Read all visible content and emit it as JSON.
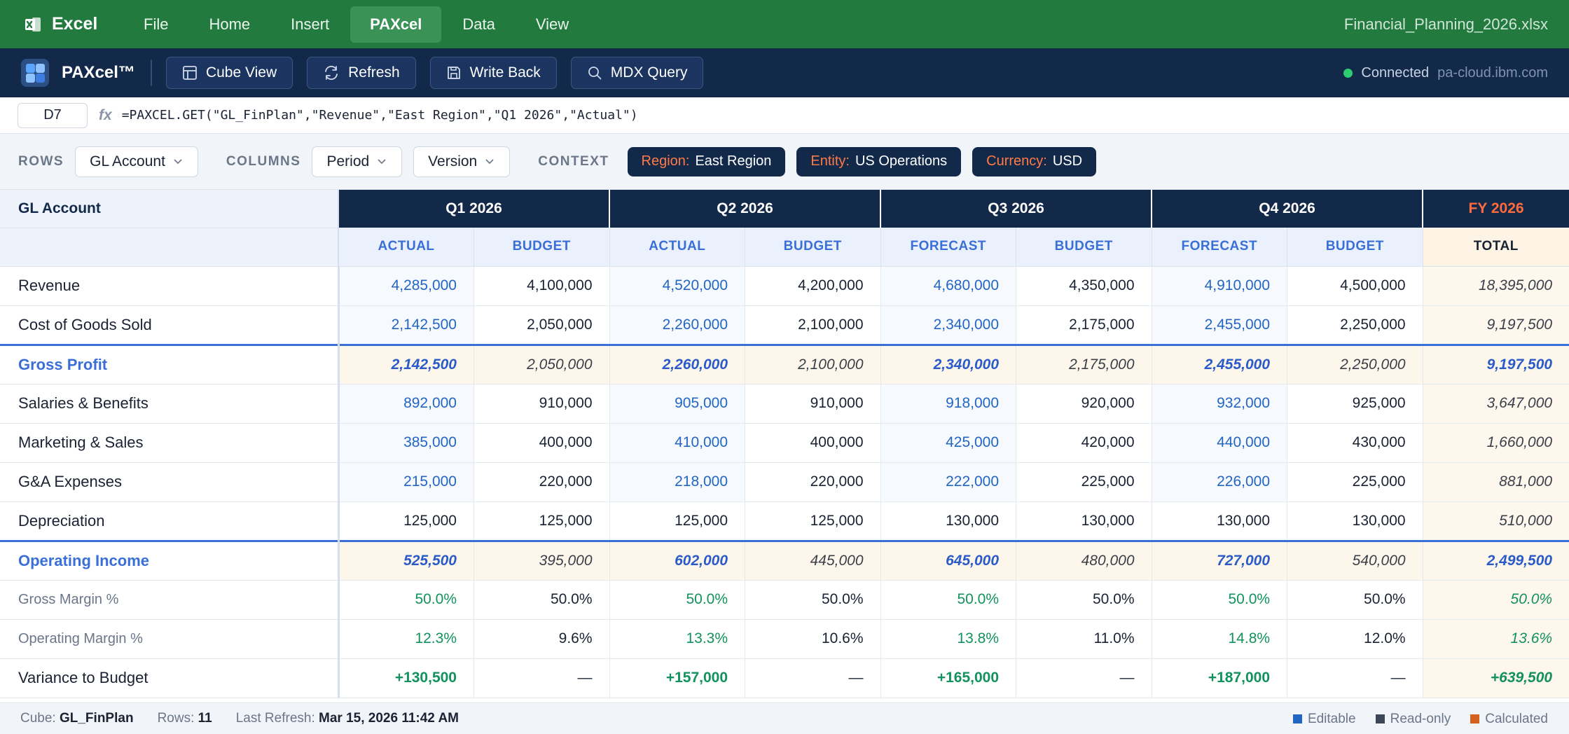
{
  "excel": {
    "app_name": "Excel",
    "tabs": [
      "File",
      "Home",
      "Insert",
      "PAXcel",
      "Data",
      "View"
    ],
    "active_tab": "PAXcel",
    "file_name": "Financial_Planning_2026.xlsx"
  },
  "paxcel": {
    "title": "PAXcel™",
    "buttons": {
      "cube_view": "Cube View",
      "refresh": "Refresh",
      "write_back": "Write Back",
      "mdx_query": "MDX Query"
    },
    "status": "Connected",
    "host": "pa-cloud.ibm.com",
    "status_color": "#2ecc71"
  },
  "formula_bar": {
    "cell": "D7",
    "fx": "fx",
    "formula": "=PAXCEL.GET(\"GL_FinPlan\",\"Revenue\",\"East Region\",\"Q1 2026\",\"Actual\")"
  },
  "dimensions": {
    "rows_label": "ROWS",
    "rows_value": "GL Account",
    "columns_label": "COLUMNS",
    "columns_values": [
      "Period",
      "Version"
    ],
    "context_label": "CONTEXT",
    "context": [
      {
        "key": "Region:",
        "value": "East Region"
      },
      {
        "key": "Entity:",
        "value": "US Operations"
      },
      {
        "key": "Currency:",
        "value": "USD"
      }
    ]
  },
  "grid": {
    "corner_label": "GL Account",
    "periods": [
      "Q1 2026",
      "Q2 2026",
      "Q3 2026",
      "Q4 2026"
    ],
    "fy_label": "FY 2026",
    "versions": [
      "ACTUAL",
      "BUDGET",
      "ACTUAL",
      "BUDGET",
      "FORECAST",
      "BUDGET",
      "FORECAST",
      "BUDGET",
      "TOTAL"
    ],
    "rows": [
      {
        "label": "Revenue",
        "type": "data",
        "values": [
          "4,285,000",
          "4,100,000",
          "4,520,000",
          "4,200,000",
          "4,680,000",
          "4,350,000",
          "4,910,000",
          "4,500,000",
          "18,395,000"
        ]
      },
      {
        "label": "Cost of Goods Sold",
        "type": "data",
        "values": [
          "2,142,500",
          "2,050,000",
          "2,260,000",
          "2,100,000",
          "2,340,000",
          "2,175,000",
          "2,455,000",
          "2,250,000",
          "9,197,500"
        ]
      },
      {
        "label": "Gross Profit",
        "type": "sub",
        "values": [
          "2,142,500",
          "2,050,000",
          "2,260,000",
          "2,100,000",
          "2,340,000",
          "2,175,000",
          "2,455,000",
          "2,250,000",
          "9,197,500"
        ]
      },
      {
        "label": "Salaries & Benefits",
        "type": "data",
        "values": [
          "892,000",
          "910,000",
          "905,000",
          "910,000",
          "918,000",
          "920,000",
          "932,000",
          "925,000",
          "3,647,000"
        ]
      },
      {
        "label": "Marketing & Sales",
        "type": "data",
        "values": [
          "385,000",
          "400,000",
          "410,000",
          "400,000",
          "425,000",
          "420,000",
          "440,000",
          "430,000",
          "1,660,000"
        ]
      },
      {
        "label": "G&A Expenses",
        "type": "data",
        "values": [
          "215,000",
          "220,000",
          "218,000",
          "220,000",
          "222,000",
          "225,000",
          "226,000",
          "225,000",
          "881,000"
        ]
      },
      {
        "label": "Depreciation",
        "type": "ro",
        "values": [
          "125,000",
          "125,000",
          "125,000",
          "125,000",
          "130,000",
          "130,000",
          "130,000",
          "130,000",
          "510,000"
        ]
      },
      {
        "label": "Operating Income",
        "type": "sub",
        "values": [
          "525,500",
          "395,000",
          "602,000",
          "445,000",
          "645,000",
          "480,000",
          "727,000",
          "540,000",
          "2,499,500"
        ]
      },
      {
        "label": "Gross Margin %",
        "type": "kpi",
        "values": [
          "50.0%",
          "50.0%",
          "50.0%",
          "50.0%",
          "50.0%",
          "50.0%",
          "50.0%",
          "50.0%",
          "50.0%"
        ]
      },
      {
        "label": "Operating Margin %",
        "type": "kpi",
        "values": [
          "12.3%",
          "9.6%",
          "13.3%",
          "10.6%",
          "13.8%",
          "11.0%",
          "14.8%",
          "12.0%",
          "13.6%"
        ]
      },
      {
        "label": "Variance to Budget",
        "type": "var",
        "values": [
          "+130,500",
          "—",
          "+157,000",
          "—",
          "+165,000",
          "—",
          "+187,000",
          "—",
          "+639,500"
        ]
      }
    ]
  },
  "status_bar": {
    "cube_label": "Cube:",
    "cube_value": "GL_FinPlan",
    "rows_label": "Rows:",
    "rows_value": "11",
    "refresh_label": "Last Refresh:",
    "refresh_value": "Mar 15, 2026 11:42 AM",
    "legend": [
      {
        "label": "Editable",
        "color": "#2266c4"
      },
      {
        "label": "Read-only",
        "color": "#3d4657"
      },
      {
        "label": "Calculated",
        "color": "#d4621e"
      }
    ]
  }
}
